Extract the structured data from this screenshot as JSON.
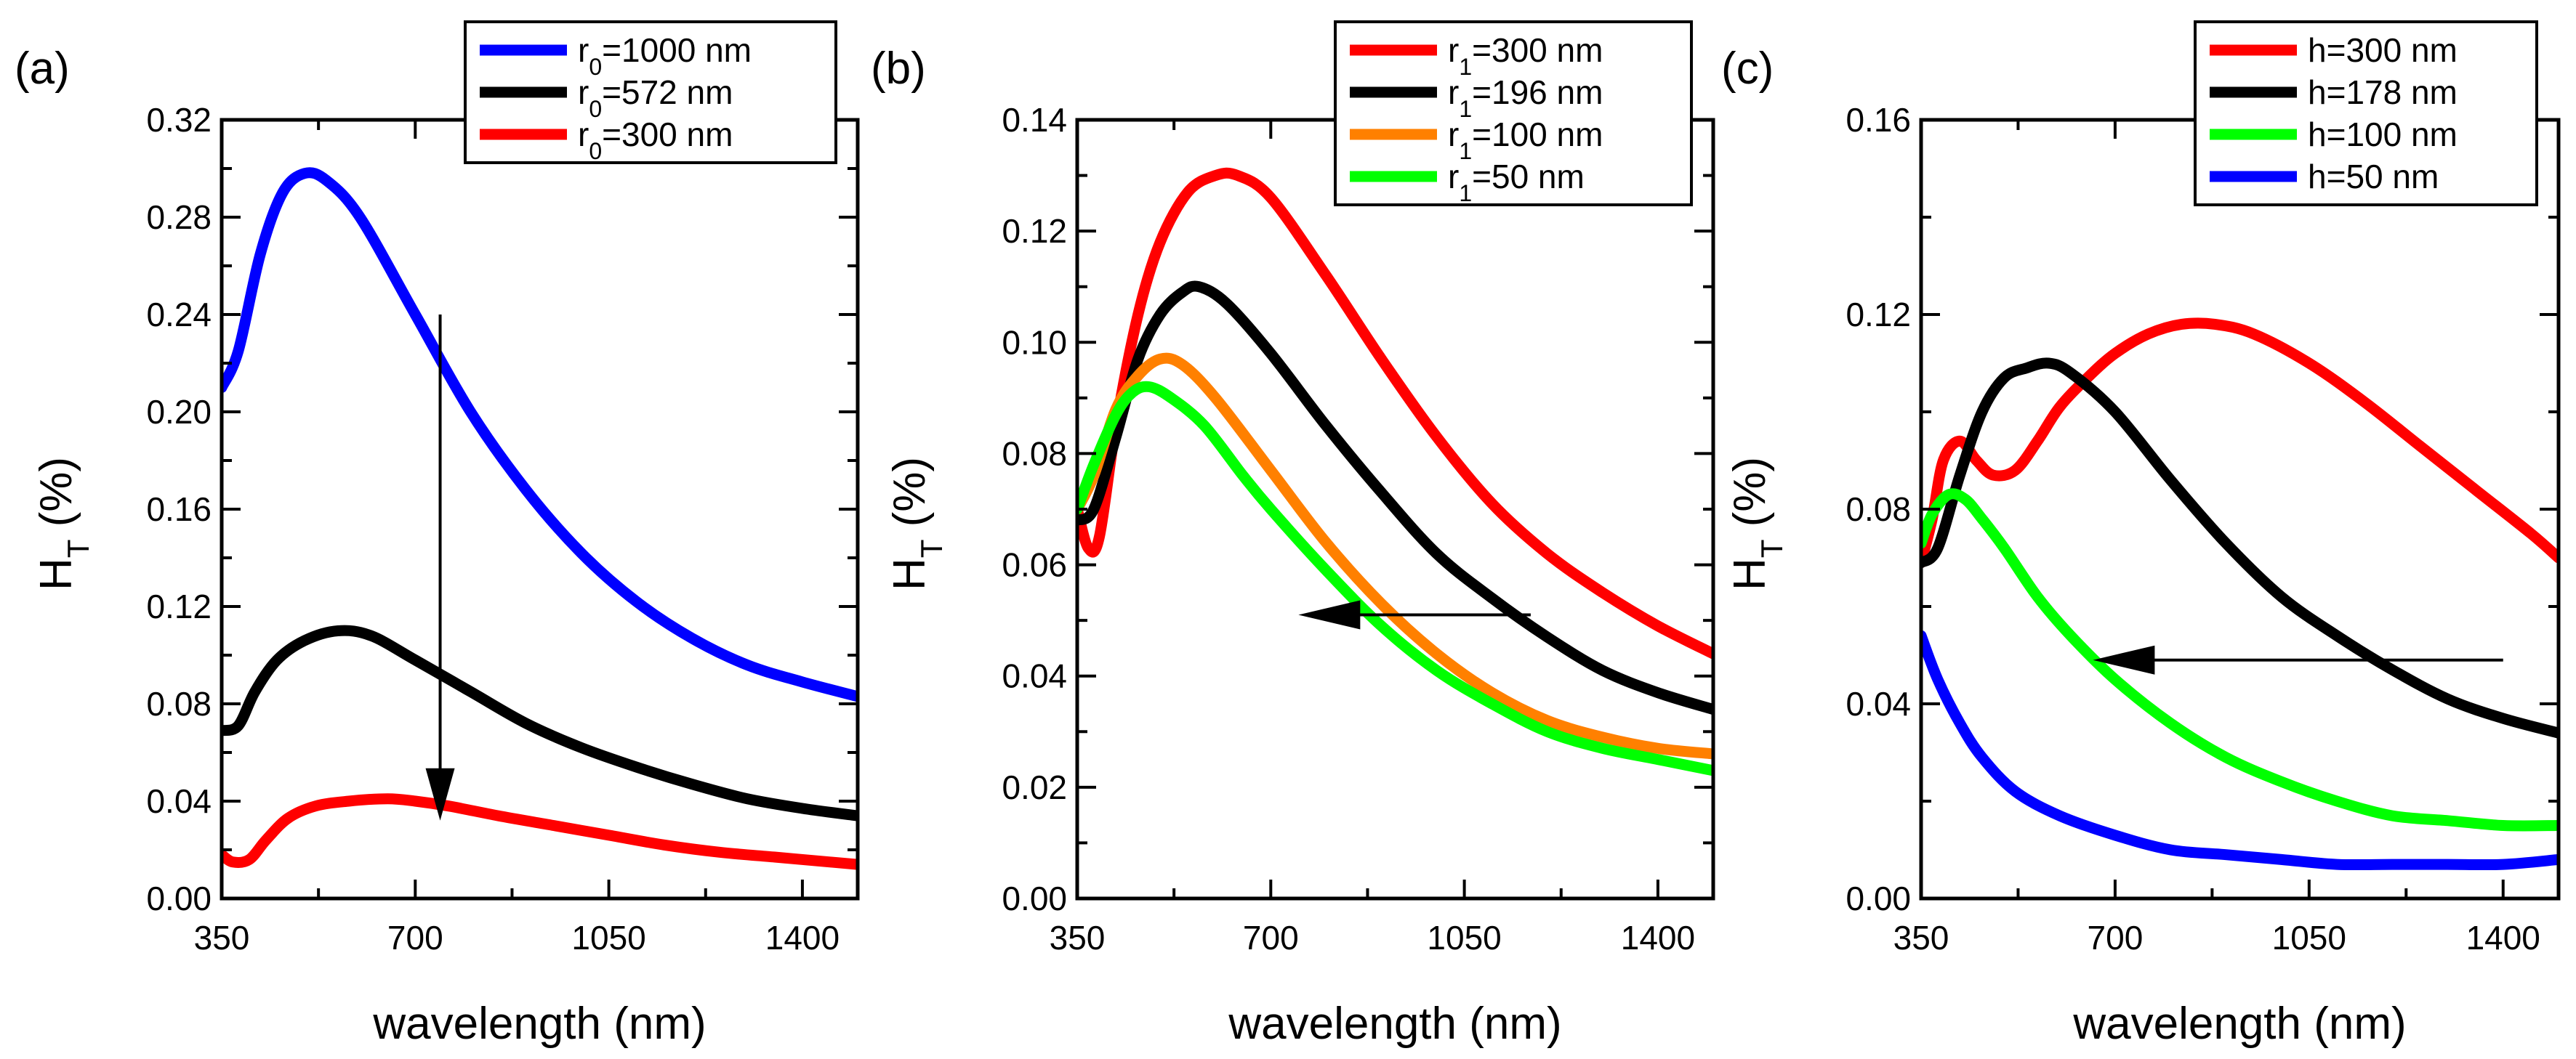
{
  "chart_data": [
    {
      "type": "line",
      "panel_label": "(a)",
      "xlabel": "wavelength (nm)",
      "ylabel_main": "H",
      "ylabel_sub": "T",
      "ylabel_unit": " (%)",
      "xlim": [
        350,
        1500
      ],
      "ylim": [
        0,
        0.32
      ],
      "xticks": [
        350,
        700,
        1050,
        1400
      ],
      "xtick_labels": [
        "350",
        "700",
        "1050",
        "1400"
      ],
      "yticks": [
        0,
        0.04,
        0.08,
        0.12,
        0.16,
        0.2,
        0.24,
        0.28,
        0.32
      ],
      "ytick_labels": [
        "0.00",
        "0.04",
        "0.08",
        "0.12",
        "0.16",
        "0.20",
        "0.24",
        "0.28",
        "0.32"
      ],
      "legend_position": "top-right",
      "series": [
        {
          "name_main": "r",
          "name_sub": "0",
          "name_rest": "=1000 nm",
          "color": "#0000ff",
          "x": [
            350,
            380,
            420,
            460,
            500,
            540,
            600,
            700,
            800,
            900,
            1000,
            1100,
            1200,
            1300,
            1400,
            1500
          ],
          "y": [
            0.21,
            0.225,
            0.265,
            0.29,
            0.298,
            0.295,
            0.28,
            0.24,
            0.2,
            0.168,
            0.142,
            0.122,
            0.107,
            0.096,
            0.089,
            0.083
          ]
        },
        {
          "name_main": "r",
          "name_sub": "0",
          "name_rest": "=572 nm",
          "color": "#000000",
          "x": [
            350,
            380,
            410,
            450,
            500,
            560,
            620,
            700,
            800,
            900,
            1000,
            1100,
            1200,
            1300,
            1400,
            1500
          ],
          "y": [
            0.069,
            0.071,
            0.085,
            0.098,
            0.106,
            0.11,
            0.108,
            0.098,
            0.085,
            0.072,
            0.062,
            0.054,
            0.047,
            0.041,
            0.037,
            0.034
          ]
        },
        {
          "name_main": "r",
          "name_sub": "0",
          "name_rest": "=300 nm",
          "color": "#ff0000",
          "x": [
            350,
            370,
            400,
            430,
            470,
            520,
            580,
            650,
            700,
            760,
            850,
            950,
            1050,
            1150,
            1250,
            1350,
            1450,
            1500
          ],
          "y": [
            0.018,
            0.015,
            0.016,
            0.024,
            0.033,
            0.038,
            0.04,
            0.041,
            0.04,
            0.038,
            0.034,
            0.03,
            0.026,
            0.022,
            0.019,
            0.017,
            0.015,
            0.014
          ]
        }
      ],
      "annotation": {
        "type": "arrow",
        "from": [
          745,
          0.24
        ],
        "to": [
          745,
          0.032
        ],
        "note": "downward arrow"
      }
    },
    {
      "type": "line",
      "panel_label": "(b)",
      "xlabel": "wavelength (nm)",
      "ylabel_main": "H",
      "ylabel_sub": "T",
      "ylabel_unit": " (%)",
      "xlim": [
        350,
        1500
      ],
      "ylim": [
        0,
        0.14
      ],
      "xticks": [
        350,
        700,
        1050,
        1400
      ],
      "xtick_labels": [
        "350",
        "700",
        "1050",
        "1400"
      ],
      "yticks": [
        0,
        0.02,
        0.04,
        0.06,
        0.08,
        0.1,
        0.12,
        0.14
      ],
      "ytick_labels": [
        "0.00",
        "0.02",
        "0.04",
        "0.06",
        "0.08",
        "0.10",
        "0.12",
        "0.14"
      ],
      "legend_position": "top-right",
      "series": [
        {
          "name_main": "r",
          "name_sub": "1",
          "name_rest": "=300 nm",
          "color": "#ff0000",
          "x": [
            350,
            370,
            390,
            420,
            460,
            500,
            550,
            600,
            640,
            700,
            800,
            900,
            1000,
            1100,
            1200,
            1300,
            1400,
            1500
          ],
          "y": [
            0.07,
            0.063,
            0.065,
            0.085,
            0.105,
            0.118,
            0.127,
            0.13,
            0.13,
            0.126,
            0.112,
            0.097,
            0.083,
            0.071,
            0.062,
            0.055,
            0.049,
            0.044
          ]
        },
        {
          "name_main": "r",
          "name_sub": "1",
          "name_rest": "=196 nm",
          "color": "#000000",
          "x": [
            350,
            380,
            420,
            460,
            500,
            540,
            570,
            620,
            700,
            800,
            900,
            1000,
            1100,
            1200,
            1300,
            1400,
            1500
          ],
          "y": [
            0.068,
            0.07,
            0.083,
            0.097,
            0.105,
            0.109,
            0.11,
            0.107,
            0.098,
            0.085,
            0.073,
            0.062,
            0.054,
            0.047,
            0.041,
            0.037,
            0.034
          ]
        },
        {
          "name_main": "r",
          "name_sub": "1",
          "name_rest": "=100 nm",
          "color": "#ff8000",
          "x": [
            350,
            380,
            420,
            460,
            500,
            540,
            600,
            700,
            800,
            900,
            1000,
            1100,
            1200,
            1300,
            1400,
            1500
          ],
          "y": [
            0.07,
            0.076,
            0.088,
            0.094,
            0.097,
            0.096,
            0.09,
            0.077,
            0.064,
            0.053,
            0.044,
            0.037,
            0.032,
            0.029,
            0.027,
            0.026
          ]
        },
        {
          "name_main": "r",
          "name_sub": "1",
          "name_rest": "=50 nm",
          "color": "#00ff00",
          "x": [
            350,
            380,
            420,
            450,
            480,
            520,
            580,
            650,
            700,
            800,
            900,
            1000,
            1100,
            1200,
            1300,
            1400,
            1500
          ],
          "y": [
            0.07,
            0.078,
            0.087,
            0.091,
            0.092,
            0.09,
            0.085,
            0.076,
            0.07,
            0.059,
            0.049,
            0.041,
            0.035,
            0.03,
            0.027,
            0.025,
            0.023
          ]
        }
      ],
      "annotation": {
        "type": "arrow",
        "from": [
          1170,
          0.051
        ],
        "to": [
          750,
          0.051
        ],
        "note": "leftward arrow"
      }
    },
    {
      "type": "line",
      "panel_label": "(c)",
      "xlabel": "wavelength (nm)",
      "ylabel_main": "H",
      "ylabel_sub": "T",
      "ylabel_unit": " (%)",
      "xlim": [
        350,
        1500
      ],
      "ylim": [
        0,
        0.16
      ],
      "xticks": [
        350,
        700,
        1050,
        1400
      ],
      "xtick_labels": [
        "350",
        "700",
        "1050",
        "1400"
      ],
      "yticks": [
        0,
        0.04,
        0.08,
        0.12,
        0.16
      ],
      "ytick_labels": [
        "0.00",
        "0.04",
        "0.08",
        "0.12",
        "0.16"
      ],
      "legend_position": "top-right",
      "series": [
        {
          "name_main": "h=300 nm",
          "name_sub": "",
          "name_rest": "",
          "color": "#ff0000",
          "x": [
            350,
            370,
            390,
            420,
            450,
            480,
            520,
            560,
            600,
            650,
            700,
            760,
            820,
            880,
            950,
            1050,
            1150,
            1250,
            1350,
            1450,
            1500
          ],
          "y": [
            0.069,
            0.078,
            0.09,
            0.094,
            0.09,
            0.087,
            0.088,
            0.094,
            0.101,
            0.107,
            0.112,
            0.116,
            0.118,
            0.118,
            0.116,
            0.11,
            0.102,
            0.093,
            0.084,
            0.075,
            0.07
          ]
        },
        {
          "name_main": "h=178 nm",
          "name_sub": "",
          "name_rest": "",
          "color": "#000000",
          "x": [
            350,
            380,
            420,
            460,
            500,
            540,
            580,
            620,
            700,
            800,
            900,
            1000,
            1100,
            1200,
            1300,
            1400,
            1500
          ],
          "y": [
            0.069,
            0.072,
            0.087,
            0.1,
            0.107,
            0.109,
            0.11,
            0.108,
            0.1,
            0.086,
            0.073,
            0.062,
            0.054,
            0.047,
            0.041,
            0.037,
            0.034
          ]
        },
        {
          "name_main": "h=100 nm",
          "name_sub": "",
          "name_rest": "",
          "color": "#00ff00",
          "x": [
            350,
            370,
            400,
            430,
            460,
            500,
            560,
            620,
            700,
            800,
            900,
            1000,
            1100,
            1200,
            1300,
            1400,
            1500
          ],
          "y": [
            0.073,
            0.079,
            0.083,
            0.082,
            0.078,
            0.072,
            0.062,
            0.054,
            0.045,
            0.036,
            0.029,
            0.024,
            0.02,
            0.017,
            0.016,
            0.015,
            0.015
          ]
        },
        {
          "name_main": "h=50 nm",
          "name_sub": "",
          "name_rest": "",
          "color": "#0000ff",
          "x": [
            350,
            380,
            420,
            460,
            520,
            600,
            700,
            800,
            900,
            1000,
            1100,
            1200,
            1300,
            1400,
            1500
          ],
          "y": [
            0.054,
            0.045,
            0.036,
            0.029,
            0.022,
            0.017,
            0.013,
            0.01,
            0.009,
            0.008,
            0.007,
            0.007,
            0.007,
            0.007,
            0.008
          ]
        }
      ],
      "annotation": {
        "type": "arrow",
        "from": [
          1400,
          0.049
        ],
        "to": [
          660,
          0.049
        ],
        "note": "leftward arrow"
      }
    }
  ]
}
